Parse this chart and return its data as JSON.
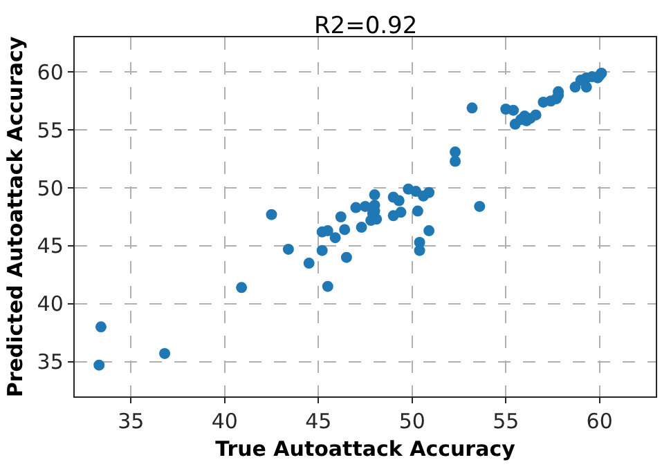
{
  "chart_data": {
    "type": "scatter",
    "title": "R2=0.92",
    "xlabel": "True Autoattack Accuracy",
    "ylabel": "Predicted Autoattack Accuracy",
    "xlim": [
      32,
      63
    ],
    "ylim": [
      32,
      63
    ],
    "xticks": [
      35,
      40,
      45,
      50,
      55,
      60
    ],
    "yticks": [
      35,
      40,
      45,
      50,
      55,
      60
    ],
    "grid": true,
    "marker": "circle",
    "series": [
      {
        "color": "#1f77b4",
        "x": [
          33.3,
          33.4,
          36.8,
          40.9,
          42.5,
          43.4,
          44.5,
          45.2,
          45.5,
          45.2,
          45.5,
          45.9,
          46.2,
          46.4,
          46.5,
          47.0,
          47.3,
          47.5,
          47.8,
          47.9,
          48.0,
          48.0,
          48.1,
          48.0,
          49.0,
          49.0,
          49.3,
          49.4,
          49.8,
          50.2,
          50.3,
          50.4,
          50.4,
          50.6,
          50.9,
          50.9,
          52.3,
          52.3,
          53.2,
          53.6,
          55.0,
          55.4,
          55.5,
          55.8,
          56.0,
          56.1,
          56.3,
          56.6,
          57.0,
          57.4,
          57.7,
          57.8,
          57.8,
          58.7,
          59.0,
          59.3,
          59.3,
          59.6,
          59.9,
          60.0,
          60.1
        ],
        "values": [
          34.7,
          38.0,
          35.7,
          41.4,
          47.7,
          44.7,
          43.5,
          44.6,
          41.5,
          46.2,
          46.3,
          45.7,
          47.5,
          46.4,
          44.0,
          48.3,
          46.6,
          48.4,
          47.2,
          47.8,
          48.5,
          49.4,
          47.3,
          48.0,
          49.2,
          47.6,
          48.9,
          47.9,
          49.9,
          49.7,
          48.0,
          45.3,
          44.6,
          49.3,
          49.6,
          46.3,
          52.3,
          53.1,
          56.9,
          48.4,
          56.8,
          56.7,
          55.5,
          55.9,
          56.2,
          55.8,
          56.0,
          56.3,
          57.4,
          57.5,
          57.7,
          58.0,
          58.3,
          58.7,
          59.3,
          59.5,
          58.7,
          59.6,
          59.5,
          59.7,
          59.9
        ]
      }
    ]
  }
}
